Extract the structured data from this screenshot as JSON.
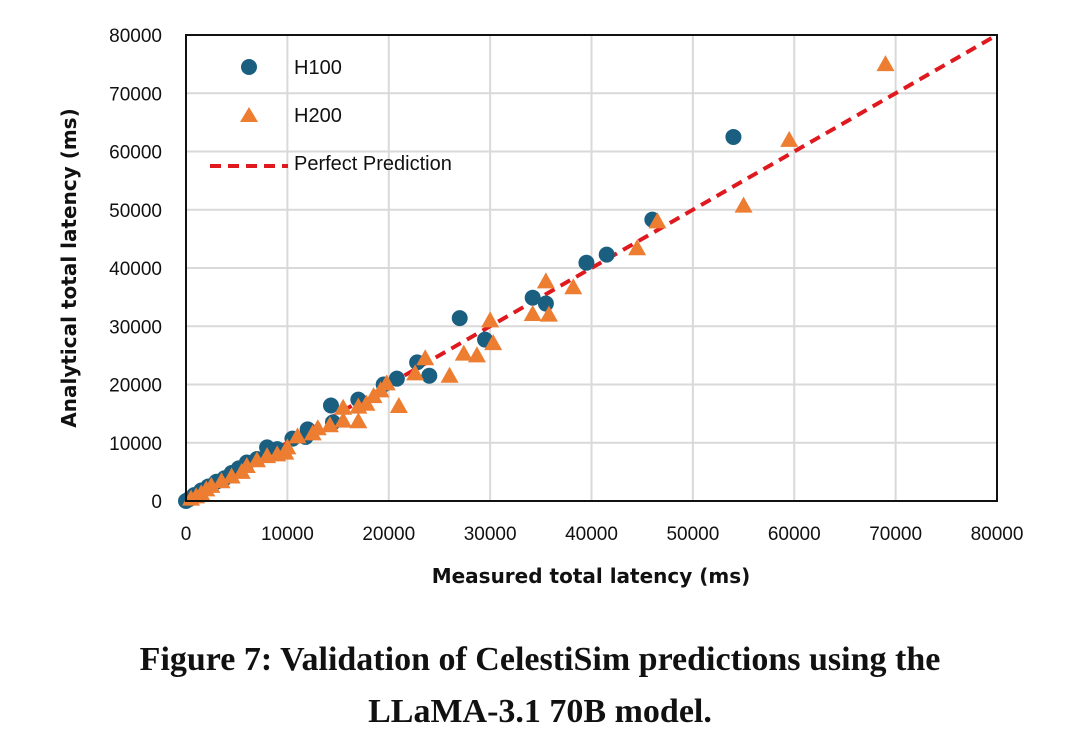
{
  "chart_data": {
    "type": "scatter",
    "xlabel": "Measured total latency (ms)",
    "ylabel": "Analytical total latency (ms)",
    "xlim": [
      0,
      80000
    ],
    "ylim": [
      0,
      80000
    ],
    "xticks": [
      "0",
      "10000",
      "20000",
      "30000",
      "40000",
      "50000",
      "60000",
      "70000",
      "80000"
    ],
    "yticks": [
      "0",
      "10000",
      "20000",
      "30000",
      "40000",
      "50000",
      "60000",
      "70000",
      "80000"
    ],
    "grid": true,
    "legend_position": "top-left",
    "series": [
      {
        "name": "H100",
        "marker": "circle",
        "color": "#1b5f80",
        "points": [
          [
            0,
            0
          ],
          [
            300,
            300
          ],
          [
            800,
            1000
          ],
          [
            1500,
            1800
          ],
          [
            2200,
            2500
          ],
          [
            3000,
            3300
          ],
          [
            3800,
            3900
          ],
          [
            4500,
            4800
          ],
          [
            5200,
            5600
          ],
          [
            6000,
            6600
          ],
          [
            7000,
            7200
          ],
          [
            8000,
            9200
          ],
          [
            9000,
            8900
          ],
          [
            10500,
            10700
          ],
          [
            11800,
            11000
          ],
          [
            12000,
            12300
          ],
          [
            14500,
            13500
          ],
          [
            14300,
            16400
          ],
          [
            17000,
            17400
          ],
          [
            19500,
            20000
          ],
          [
            20800,
            21000
          ],
          [
            24000,
            21500
          ],
          [
            22800,
            23800
          ],
          [
            29500,
            27700
          ],
          [
            27000,
            31400
          ],
          [
            35500,
            33900
          ],
          [
            34200,
            34900
          ],
          [
            39500,
            40900
          ],
          [
            41500,
            42300
          ],
          [
            46000,
            48300
          ],
          [
            54000,
            62500
          ]
        ]
      },
      {
        "name": "H200",
        "marker": "triangle",
        "color": "#ed7d31",
        "points": [
          [
            500,
            400
          ],
          [
            1000,
            800
          ],
          [
            1500,
            1300
          ],
          [
            2000,
            2000
          ],
          [
            2500,
            2600
          ],
          [
            3500,
            3400
          ],
          [
            4500,
            4200
          ],
          [
            5500,
            5000
          ],
          [
            6000,
            6000
          ],
          [
            7000,
            7000
          ],
          [
            8000,
            7700
          ],
          [
            9000,
            8000
          ],
          [
            9800,
            8300
          ],
          [
            10000,
            9200
          ],
          [
            11000,
            11100
          ],
          [
            12500,
            11600
          ],
          [
            13000,
            12500
          ],
          [
            14200,
            13000
          ],
          [
            15500,
            13800
          ],
          [
            15500,
            16000
          ],
          [
            17000,
            13700
          ],
          [
            17000,
            16200
          ],
          [
            17800,
            16700
          ],
          [
            18500,
            18000
          ],
          [
            19200,
            19000
          ],
          [
            19800,
            20200
          ],
          [
            21000,
            16300
          ],
          [
            22600,
            21900
          ],
          [
            23600,
            24500
          ],
          [
            26000,
            21500
          ],
          [
            27400,
            25300
          ],
          [
            28700,
            25000
          ],
          [
            30300,
            27100
          ],
          [
            30000,
            31000
          ],
          [
            34200,
            32100
          ],
          [
            35800,
            32000
          ],
          [
            35500,
            37700
          ],
          [
            38200,
            36700
          ],
          [
            44500,
            43400
          ],
          [
            46500,
            48000
          ],
          [
            55000,
            50700
          ],
          [
            59500,
            62000
          ],
          [
            69000,
            75000
          ]
        ]
      },
      {
        "name": "Perfect Prediction",
        "type": "line",
        "style": "dashed",
        "color": "#e0191e",
        "points": [
          [
            0,
            0
          ],
          [
            80000,
            80000
          ]
        ]
      }
    ]
  },
  "caption": {
    "line1": "Figure 7: Validation of CelestiSim predictions using the",
    "line2": "LLaMA-3.1 70B model."
  }
}
